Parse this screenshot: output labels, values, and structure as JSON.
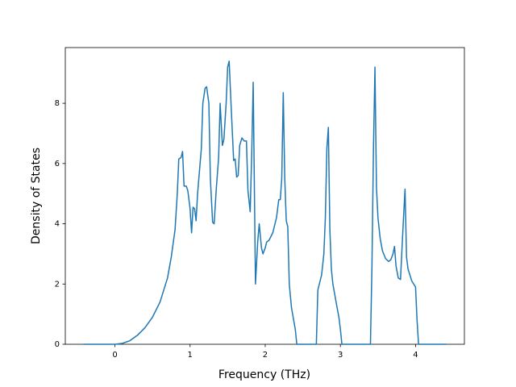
{
  "chart_data": {
    "type": "line",
    "xlabel": "Frequency (THz)",
    "ylabel": "Density of States",
    "xlim": [
      -0.66,
      4.65
    ],
    "ylim": [
      0,
      9.85
    ],
    "xticks": [
      0,
      1,
      2,
      3,
      4
    ],
    "yticks": [
      0,
      2,
      4,
      6,
      8
    ],
    "x": [
      -0.42,
      0,
      0.1,
      0.2,
      0.3,
      0.4,
      0.5,
      0.6,
      0.7,
      0.75,
      0.8,
      0.83,
      0.85,
      0.88,
      0.9,
      0.92,
      0.95,
      0.97,
      1.0,
      1.02,
      1.04,
      1.06,
      1.08,
      1.1,
      1.13,
      1.15,
      1.17,
      1.2,
      1.22,
      1.25,
      1.27,
      1.3,
      1.32,
      1.35,
      1.38,
      1.4,
      1.43,
      1.45,
      1.48,
      1.5,
      1.52,
      1.55,
      1.58,
      1.6,
      1.62,
      1.64,
      1.66,
      1.69,
      1.72,
      1.75,
      1.77,
      1.8,
      1.82,
      1.84,
      1.87,
      1.9,
      1.92,
      1.95,
      1.97,
      2.0,
      2.02,
      2.05,
      2.1,
      2.15,
      2.18,
      2.2,
      2.22,
      2.24,
      2.26,
      2.28,
      2.3,
      2.32,
      2.35,
      2.4,
      2.42,
      2.68,
      2.7,
      2.75,
      2.78,
      2.8,
      2.82,
      2.84,
      2.86,
      2.88,
      2.9,
      2.95,
      2.98,
      3.0,
      3.02,
      3.4,
      3.42,
      3.44,
      3.46,
      3.48,
      3.5,
      3.53,
      3.56,
      3.6,
      3.64,
      3.67,
      3.7,
      3.72,
      3.74,
      3.77,
      3.8,
      3.82,
      3.84,
      3.86,
      3.88,
      3.9,
      3.95,
      4.0,
      4.02,
      4.04,
      4.41
    ],
    "series": [
      {
        "color": "#1f77b4",
        "values": [
          0,
          0,
          0.03,
          0.12,
          0.3,
          0.55,
          0.9,
          1.4,
          2.2,
          2.9,
          3.8,
          5.0,
          6.15,
          6.2,
          6.4,
          5.25,
          5.25,
          5.1,
          4.5,
          3.7,
          4.55,
          4.5,
          4.1,
          5.0,
          5.9,
          6.5,
          8.0,
          8.5,
          8.55,
          8.0,
          5.5,
          4.05,
          4.0,
          5.2,
          6.2,
          8.0,
          6.6,
          6.8,
          8.0,
          9.2,
          9.4,
          7.7,
          6.1,
          6.15,
          5.55,
          5.6,
          6.6,
          6.85,
          6.75,
          6.75,
          5.1,
          4.4,
          6.3,
          8.7,
          2.0,
          3.4,
          4.0,
          3.2,
          3.0,
          3.2,
          3.4,
          3.45,
          3.7,
          4.2,
          4.8,
          4.8,
          5.5,
          8.35,
          5.5,
          4.1,
          3.9,
          2.0,
          1.2,
          0.5,
          0,
          0,
          1.8,
          2.3,
          3.0,
          4.2,
          6.5,
          7.2,
          3.8,
          2.5,
          2.0,
          1.3,
          0.9,
          0.5,
          0,
          0,
          2.6,
          6.5,
          9.2,
          5.2,
          4.2,
          3.5,
          3.1,
          2.85,
          2.75,
          2.8,
          3.0,
          3.25,
          2.6,
          2.2,
          2.15,
          3.2,
          4.2,
          5.15,
          2.9,
          2.5,
          2.1,
          1.9,
          0.8,
          0,
          0
        ]
      }
    ]
  }
}
